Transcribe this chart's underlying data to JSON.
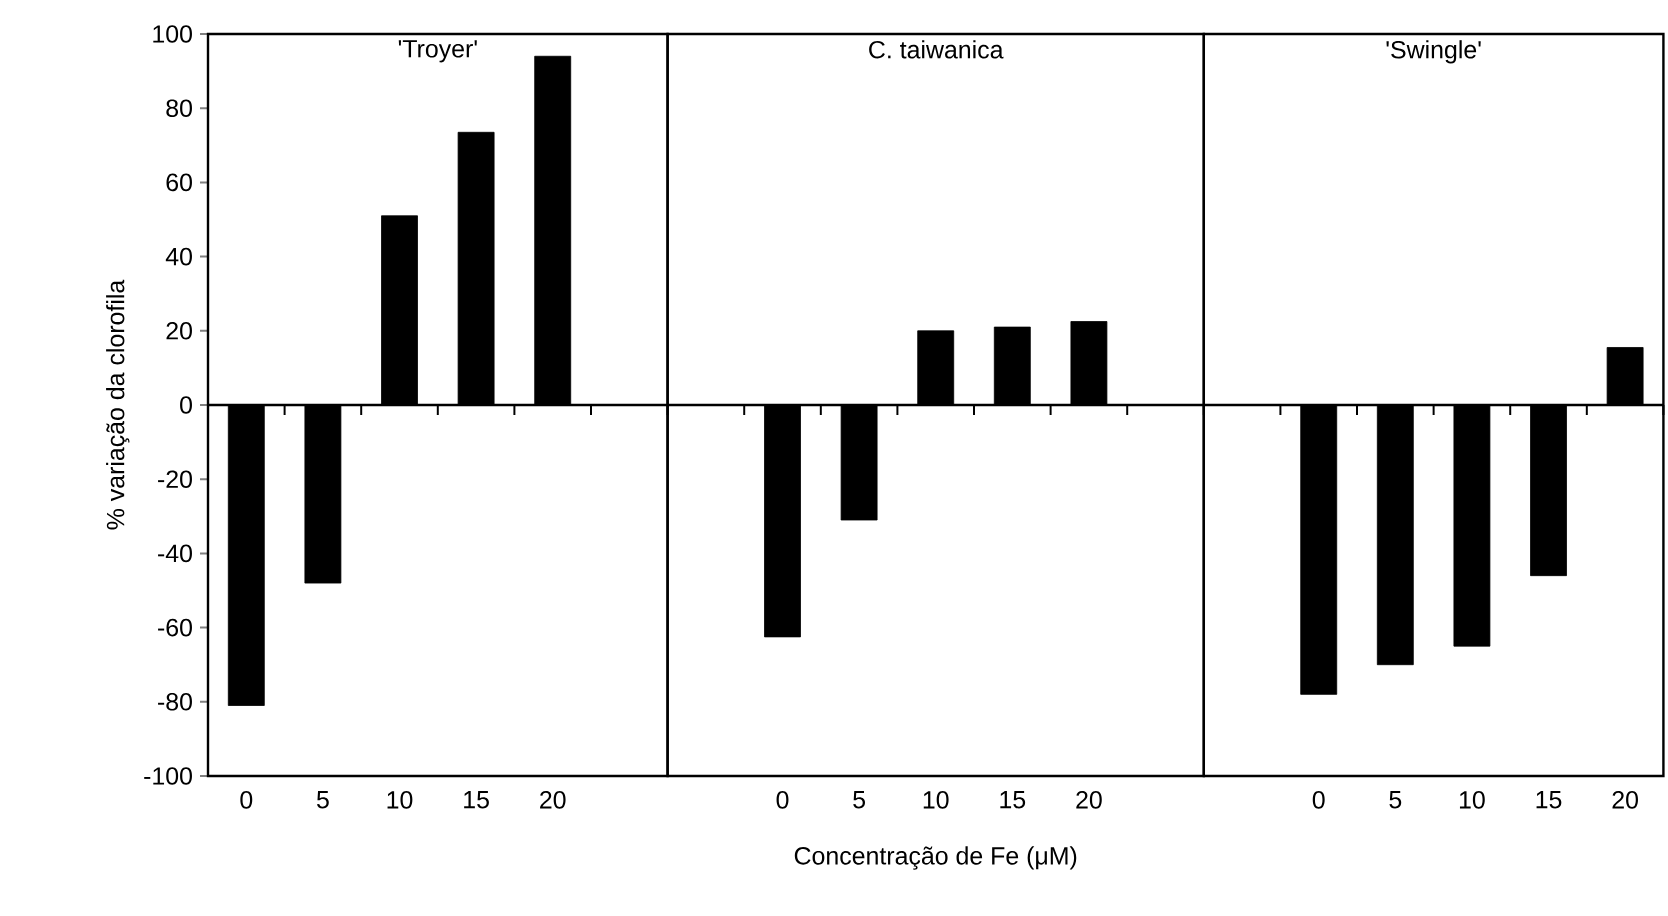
{
  "chart_data": [
    {
      "type": "bar",
      "title": "'Troyer'",
      "ylabel": "% variação da clorofila",
      "categories": [
        "0",
        "5",
        "10",
        "15",
        "20"
      ],
      "values": [
        -81,
        -48,
        51,
        73.5,
        94
      ],
      "color": "#000000",
      "ylim": [
        -100,
        100
      ],
      "yticks": [
        -100,
        -80,
        -60,
        -40,
        -20,
        0,
        20,
        40,
        60,
        80,
        100
      ]
    },
    {
      "type": "bar",
      "title": "C. taiwanica",
      "xlabel": "Concentração de Fe (μM)",
      "categories": [
        "0",
        "5",
        "10",
        "15",
        "20"
      ],
      "values": [
        -62.5,
        -31,
        20,
        21,
        22.5
      ],
      "color": "#000000",
      "ylim": [
        -100,
        100
      ],
      "tick_labels": "x"
    },
    {
      "type": "bar",
      "title": "'Swingle'",
      "categories": [
        "0",
        "5",
        "10",
        "15",
        "20"
      ],
      "values": [
        -78,
        -70,
        -65,
        -46,
        15.5
      ],
      "color": "#000000",
      "ylim": [
        -100,
        100
      ],
      "tick_labels": "x"
    }
  ]
}
